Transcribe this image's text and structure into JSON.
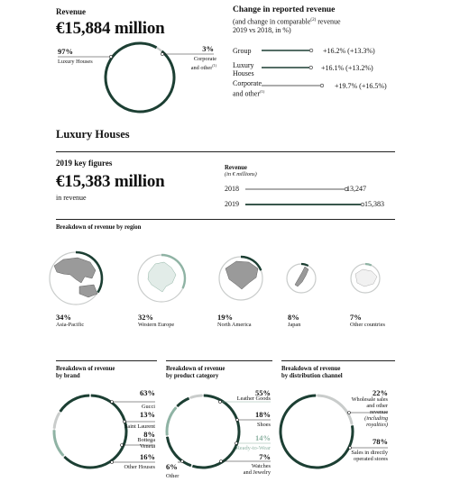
{
  "revenue": {
    "title": "Revenue",
    "value": "€15,884 million"
  },
  "top_pie": {
    "left_pct": "97%",
    "left_label": "Luxury Houses",
    "right_pct": "3%",
    "right_label_1": "Corporate",
    "right_label_2": "and other",
    "right_label_sup": "(1)"
  },
  "change": {
    "title": "Change in reported revenue",
    "subtitle_1a": "(and change in comparable",
    "subtitle_sup": "(2)",
    "subtitle_1b": " revenue",
    "subtitle_2": "2019 vs 2018, in %)",
    "rows": [
      {
        "label_1": "Group",
        "label_2": "",
        "sup": "",
        "value": "+16.2% (+13.3%)"
      },
      {
        "label_1": "Luxury",
        "label_2": "Houses",
        "sup": "",
        "value": "+16.1% (+13.2%)"
      },
      {
        "label_1": "Corporate",
        "label_2": "and other",
        "sup": "(1)",
        "value": "+19.7% (+16.5%)"
      }
    ]
  },
  "luxury_houses_heading": "Luxury Houses",
  "key_figures": {
    "title": "2019 key figures",
    "value": "€15,383 million",
    "caption": "in revenue",
    "rev_title": "Revenue",
    "rev_unit": "(in € millions)",
    "rows": [
      {
        "year": "2018",
        "value": "13,247"
      },
      {
        "year": "2019",
        "value": "15,383"
      }
    ]
  },
  "region": {
    "title": "Breakdown of revenue by region",
    "items": [
      {
        "pct": "34%",
        "label": "Asia-Pacific"
      },
      {
        "pct": "32%",
        "label": "Western Europe"
      },
      {
        "pct": "19%",
        "label": "North America"
      },
      {
        "pct": "8%",
        "label": "Japan"
      },
      {
        "pct": "7%",
        "label": "Other countries"
      }
    ]
  },
  "brand": {
    "title_1": "Breakdown of revenue",
    "title_2": "by brand",
    "items": [
      {
        "pct": "63%",
        "label_1": "Gucci",
        "label_2": ""
      },
      {
        "pct": "13%",
        "label_1": "Saint Laurent",
        "label_2": ""
      },
      {
        "pct": "8%",
        "label_1": "Bottega",
        "label_2": "Veneta"
      },
      {
        "pct": "16%",
        "label_1": "Other Houses",
        "label_2": ""
      }
    ]
  },
  "category": {
    "title_1": "Breakdown of revenue",
    "title_2": "by product category",
    "items": [
      {
        "pct": "55%",
        "label_1": "Leather Goods",
        "label_2": ""
      },
      {
        "pct": "18%",
        "label_1": "Shoes",
        "label_2": ""
      },
      {
        "pct": "14%",
        "label_1": "Ready-to-Wear",
        "label_2": ""
      },
      {
        "pct": "7%",
        "label_1": "Watches",
        "label_2": "and Jewelry"
      },
      {
        "pct": "6%",
        "label_1": "Other",
        "label_2": ""
      }
    ]
  },
  "channel": {
    "title_1": "Breakdown of revenue",
    "title_2": "by distribution channel",
    "items": [
      {
        "pct": "22%",
        "label_1": "Wholesale sales",
        "label_2": "and other",
        "label_3": "revenue",
        "label_4": "(including",
        "label_5": "royalties)"
      },
      {
        "pct": "78%",
        "label_1": "Sales in directly",
        "label_2": "operated stores",
        "label_3": "",
        "label_4": "",
        "label_5": ""
      }
    ]
  },
  "chart_data": [
    {
      "type": "pie",
      "title": "Revenue",
      "categories": [
        "Luxury Houses",
        "Corporate and other"
      ],
      "values": [
        97,
        3
      ]
    },
    {
      "type": "bar",
      "title": "Change in reported revenue",
      "categories": [
        "Group",
        "Luxury Houses",
        "Corporate and other"
      ],
      "series": [
        {
          "values": [
            16.2,
            16.1,
            19.7
          ]
        },
        {
          "values": [
            13.3,
            13.2,
            16.5
          ]
        }
      ]
    },
    {
      "type": "bar",
      "title": "Revenue",
      "ylabel": "(in € millions)",
      "categories": [
        "2018",
        "2019"
      ],
      "values": [
        13247,
        15383
      ]
    },
    {
      "type": "pie",
      "title": "Breakdown of revenue by region",
      "categories": [
        "Asia-Pacific",
        "Western Europe",
        "North America",
        "Japan",
        "Other countries"
      ],
      "values": [
        34,
        32,
        19,
        8,
        7
      ]
    },
    {
      "type": "pie",
      "title": "Breakdown of revenue by brand",
      "categories": [
        "Gucci",
        "Saint Laurent",
        "Bottega Veneta",
        "Other Houses"
      ],
      "values": [
        63,
        13,
        8,
        16
      ]
    },
    {
      "type": "pie",
      "title": "Breakdown of revenue by product category",
      "categories": [
        "Leather Goods",
        "Shoes",
        "Ready-to-Wear",
        "Watches and Jewelry",
        "Other"
      ],
      "values": [
        55,
        18,
        14,
        7,
        6
      ]
    },
    {
      "type": "pie",
      "title": "Breakdown of revenue by distribution channel",
      "categories": [
        "Wholesale sales and other revenue (including royalties)",
        "Sales in directly operated stores"
      ],
      "values": [
        22,
        78
      ]
    }
  ],
  "colors": {
    "dark_green": "#1c3f33",
    "light_green": "#8fb3a4",
    "grey": "#c9cccb",
    "map_grey": "#9a9a9a",
    "ink": "#111111"
  }
}
